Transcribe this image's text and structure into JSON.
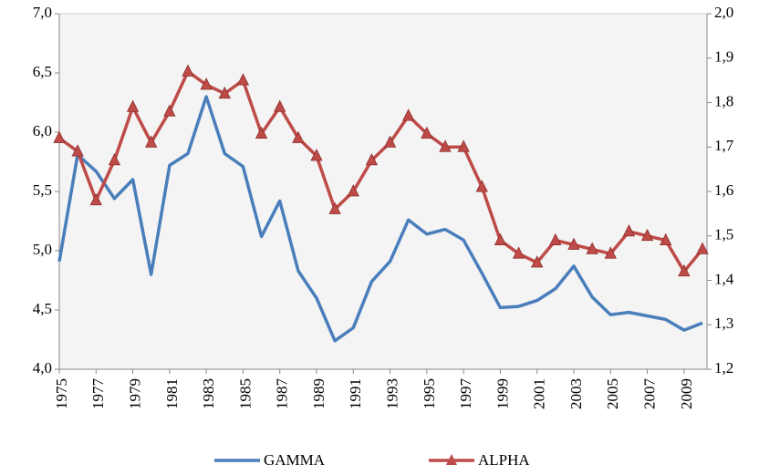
{
  "chart_data": {
    "type": "line",
    "x": [
      1975,
      1976,
      1977,
      1978,
      1979,
      1980,
      1981,
      1982,
      1983,
      1984,
      1985,
      1986,
      1987,
      1988,
      1989,
      1990,
      1991,
      1992,
      1993,
      1994,
      1995,
      1996,
      1997,
      1998,
      1999,
      2000,
      2001,
      2002,
      2003,
      2004,
      2005,
      2006,
      2007,
      2008,
      2009,
      2010
    ],
    "xlim": [
      1975,
      2010
    ],
    "xticks": [
      1975,
      1977,
      1979,
      1981,
      1983,
      1985,
      1987,
      1989,
      1991,
      1993,
      1995,
      1997,
      1999,
      2001,
      2003,
      2005,
      2007,
      2009
    ],
    "ylim": [
      4,
      7
    ],
    "yticks": [
      {
        "value": 4,
        "label": "4,0"
      },
      {
        "value": 4.5,
        "label": "4,5"
      },
      {
        "value": 5,
        "label": "5,0"
      },
      {
        "value": 5.5,
        "label": "5,5"
      },
      {
        "value": 6,
        "label": "6,0"
      },
      {
        "value": 6.5,
        "label": "6,5"
      },
      {
        "value": 7,
        "label": "7,0"
      }
    ],
    "y2lim": [
      1.2,
      2
    ],
    "y2ticks": [
      {
        "value": 1.2,
        "label": "1,2"
      },
      {
        "value": 1.3,
        "label": "1,3"
      },
      {
        "value": 1.4,
        "label": "1,4"
      },
      {
        "value": 1.5,
        "label": "1,5"
      },
      {
        "value": 1.6,
        "label": "1,6"
      },
      {
        "value": 1.7,
        "label": "1,7"
      },
      {
        "value": 1.8,
        "label": "1,8"
      },
      {
        "value": 1.9,
        "label": "1,9"
      },
      {
        "value": 2,
        "label": "2,0"
      }
    ],
    "legend": "bottom",
    "series": [
      {
        "name": "GAMMA",
        "color": "#4a7ebb",
        "axis": "y",
        "marker": "none",
        "values": [
          4.91,
          5.81,
          5.67,
          5.44,
          5.6,
          4.8,
          5.72,
          5.82,
          6.3,
          5.82,
          5.71,
          5.12,
          5.42,
          4.83,
          4.6,
          4.24,
          4.35,
          4.74,
          4.91,
          5.26,
          5.14,
          5.18,
          5.09,
          4.81,
          4.52,
          4.53,
          4.58,
          4.68,
          4.87,
          4.61,
          4.46,
          4.48,
          4.45,
          4.42,
          4.33,
          4.39
        ]
      },
      {
        "name": "ALPHA",
        "color": "#be4b48",
        "axis": "y2",
        "marker": "triangle",
        "values": [
          1.72,
          1.69,
          1.58,
          1.67,
          1.79,
          1.71,
          1.78,
          1.87,
          1.84,
          1.82,
          1.85,
          1.73,
          1.79,
          1.72,
          1.68,
          1.56,
          1.6,
          1.67,
          1.71,
          1.77,
          1.73,
          1.7,
          1.7,
          1.61,
          1.49,
          1.46,
          1.44,
          1.49,
          1.48,
          1.47,
          1.46,
          1.51,
          1.5,
          1.49,
          1.42,
          1.47
        ]
      }
    ]
  }
}
